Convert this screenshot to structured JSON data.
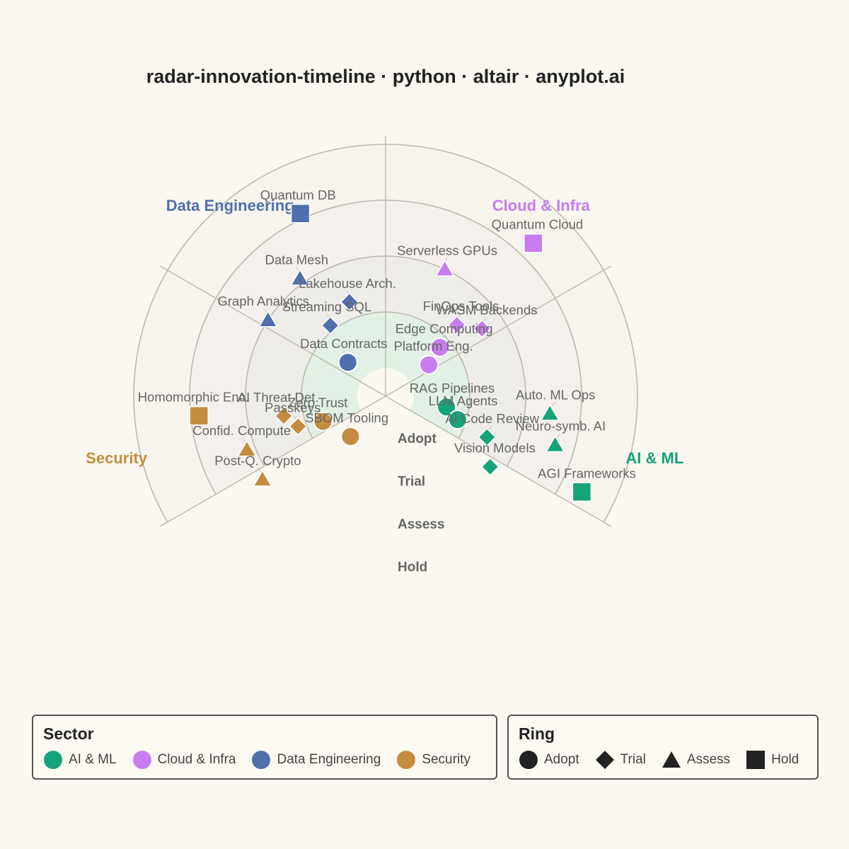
{
  "title": "radar-innovation-timeline · python · altair · anyplot.ai",
  "chart_data": {
    "type": "scatter",
    "projection": "polar-fan",
    "angle_range_deg": [
      -120,
      120
    ],
    "rings": [
      "Adopt",
      "Trial",
      "Assess",
      "Hold"
    ],
    "sectors": [
      {
        "name": "AI & ML",
        "color": "#15A37A"
      },
      {
        "name": "Cloud & Infra",
        "color": "#C77DF0"
      },
      {
        "name": "Data Engineering",
        "color": "#5070AD"
      },
      {
        "name": "Security",
        "color": "#C48C3F"
      }
    ],
    "ring_fills": [
      "#DDEEE3",
      "#EBEBE8",
      "#F3EFEC",
      "#F6F3EC"
    ],
    "points": [
      {
        "label": "RAG Pipelines",
        "sector": "AI & ML",
        "ring": "Adopt",
        "angle": 100,
        "radius": 0.6
      },
      {
        "label": "LLM Agents",
        "sector": "AI & ML",
        "ring": "Adopt",
        "angle": 108,
        "radius": 0.85
      },
      {
        "label": "AI Code Review",
        "sector": "AI & ML",
        "ring": "Trial",
        "angle": 112,
        "radius": 1.45
      },
      {
        "label": "Vision Models",
        "sector": "AI & ML",
        "ring": "Trial",
        "angle": 124,
        "radius": 1.75
      },
      {
        "label": "Auto. ML Ops",
        "sector": "AI & ML",
        "ring": "Assess",
        "angle": 96,
        "radius": 2.45
      },
      {
        "label": "Neuro-symb. AI",
        "sector": "AI & ML",
        "ring": "Assess",
        "angle": 106,
        "radius": 2.65
      },
      {
        "label": "AGI Frameworks",
        "sector": "AI & ML",
        "ring": "Hold",
        "angle": 116,
        "radius": 3.4
      },
      {
        "label": "Platform Eng.",
        "sector": "Cloud & Infra",
        "ring": "Adopt",
        "angle": 54,
        "radius": 0.45
      },
      {
        "label": "Edge Computing",
        "sector": "Cloud & Infra",
        "ring": "Adopt",
        "angle": 48,
        "radius": 0.8
      },
      {
        "label": "FinOps Tools",
        "sector": "Cloud & Infra",
        "ring": "Trial",
        "angle": 45,
        "radius": 1.3
      },
      {
        "label": "WASM Backends",
        "sector": "Cloud & Infra",
        "ring": "Trial",
        "angle": 55,
        "radius": 1.6
      },
      {
        "label": "Serverless GPUs",
        "sector": "Cloud & Infra",
        "ring": "Assess",
        "angle": 25,
        "radius": 2.0
      },
      {
        "label": "Quantum Cloud",
        "sector": "Cloud & Infra",
        "ring": "Hold",
        "angle": 44,
        "radius": 3.3
      },
      {
        "label": "Data Contracts",
        "sector": "Data Engineering",
        "ring": "Adopt",
        "angle": -48,
        "radius": 0.4
      },
      {
        "label": "Streaming SQL",
        "sector": "Data Engineering",
        "ring": "Trial",
        "angle": -38,
        "radius": 1.1
      },
      {
        "label": "Lakehouse Arch.",
        "sector": "Data Engineering",
        "ring": "Trial",
        "angle": -21,
        "radius": 1.3
      },
      {
        "label": "Graph Analytics",
        "sector": "Data Engineering",
        "ring": "Assess",
        "angle": -57,
        "radius": 2.0
      },
      {
        "label": "Data Mesh",
        "sector": "Data Engineering",
        "ring": "Assess",
        "angle": -36,
        "radius": 2.1
      },
      {
        "label": "Quantum DB",
        "sector": "Data Engineering",
        "ring": "Hold",
        "angle": -25,
        "radius": 3.1
      },
      {
        "label": "SBOM Tooling",
        "sector": "Security",
        "ring": "Adopt",
        "angle": -139,
        "radius": 0.45
      },
      {
        "label": "Zero Trust",
        "sector": "Security",
        "ring": "Adopt",
        "angle": -112,
        "radius": 0.7
      },
      {
        "label": "AI Threat Det.",
        "sector": "Security",
        "ring": "Trial",
        "angle": -101,
        "radius": 1.35
      },
      {
        "label": "Passkeys",
        "sector": "Security",
        "ring": "Trial",
        "angle": -109,
        "radius": 1.15
      },
      {
        "label": "Confid. Compute",
        "sector": "Security",
        "ring": "Assess",
        "angle": -111,
        "radius": 2.15
      },
      {
        "label": "Post-Q. Crypto",
        "sector": "Security",
        "ring": "Assess",
        "angle": -124,
        "radius": 2.15
      },
      {
        "label": "Homomorphic Enc.",
        "sector": "Security",
        "ring": "Hold",
        "angle": -96,
        "radius": 2.85
      }
    ]
  },
  "legend": {
    "sector_title": "Sector",
    "ring_title": "Ring"
  }
}
